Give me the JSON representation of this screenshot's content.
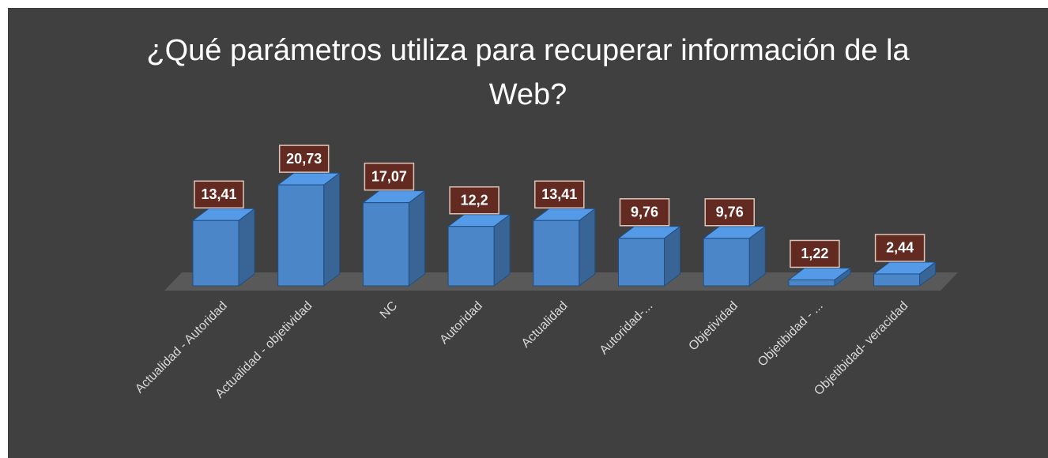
{
  "chart_data": {
    "type": "bar3d",
    "title": "¿Qué parámetros utiliza para recuperar información de la Web?",
    "categories": [
      "Actualidad - Autoridad",
      "Actualidad - objetividad",
      "NC",
      "Autoridad",
      "Actualidad",
      "Autoridad-...",
      "Objetividad",
      "Objetibidad - ...",
      "Objetibidad- veracidad"
    ],
    "values": [
      13.41,
      20.73,
      17.07,
      12.2,
      13.41,
      9.76,
      9.76,
      1.22,
      2.44
    ],
    "value_labels": [
      "13,41",
      "20,73",
      "17,07",
      "12,2",
      "13,41",
      "9,76",
      "9,76",
      "1,22",
      "2,44"
    ],
    "color": "#4a86c8"
  }
}
